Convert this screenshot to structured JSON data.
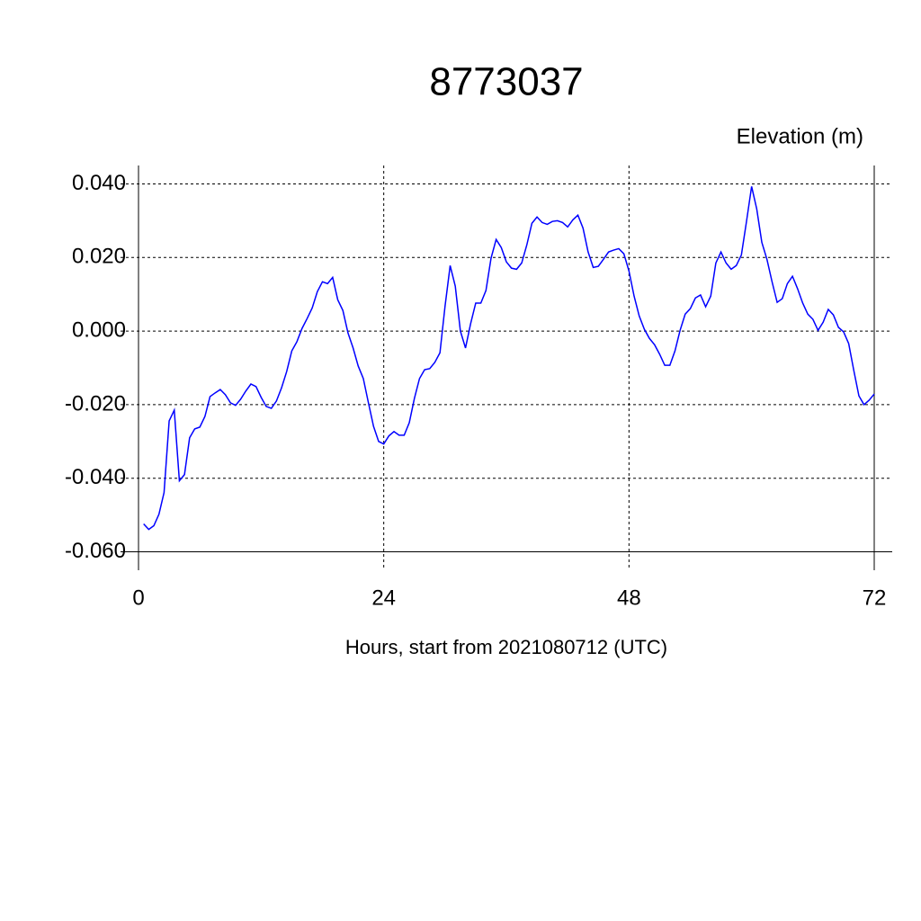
{
  "chart_data": {
    "type": "line",
    "title": "8773037",
    "y_label": "Elevation (m)",
    "x_label": "Hours, start from 2021080712 (UTC)",
    "x": [
      0.5,
      1,
      1.5,
      2,
      2.5,
      3,
      3.5,
      4,
      4.5,
      5,
      5.5,
      6,
      6.5,
      7,
      7.5,
      8,
      8.5,
      9,
      9.5,
      10,
      10.5,
      11,
      11.5,
      12,
      12.5,
      13,
      13.5,
      14,
      14.5,
      15,
      15.5,
      16,
      16.5,
      17,
      17.5,
      18,
      18.5,
      19,
      19.5,
      20,
      20.5,
      21,
      21.5,
      22,
      22.5,
      23,
      23.5,
      24,
      24.5,
      25,
      25.5,
      26,
      26.5,
      27,
      27.5,
      28,
      28.5,
      29,
      29.5,
      30,
      30.5,
      31,
      31.5,
      32,
      32.5,
      33,
      33.5,
      34,
      34.5,
      35,
      35.5,
      36,
      36.5,
      37,
      37.5,
      38,
      38.5,
      39,
      39.5,
      40,
      40.5,
      41,
      41.5,
      42,
      42.5,
      43,
      43.5,
      44,
      44.5,
      45,
      45.5,
      46,
      46.5,
      47,
      47.5,
      48,
      48.5,
      49,
      49.5,
      50,
      50.5,
      51,
      51.5,
      52,
      52.5,
      53,
      53.5,
      54,
      54.5,
      55,
      55.5,
      56,
      56.5,
      57,
      57.5,
      58,
      58.5,
      59,
      59.5,
      60,
      60.5,
      61,
      61.5,
      62,
      62.5,
      63,
      63.5,
      64,
      64.5,
      65,
      65.5,
      66,
      66.5,
      67,
      67.5,
      68,
      68.5,
      69,
      69.5,
      70,
      70.5,
      71,
      71.5,
      72
    ],
    "series": [
      {
        "color": "#0000ff",
        "values": [
          -0.0524,
          -0.0539,
          -0.0529,
          -0.0498,
          -0.0439,
          -0.0244,
          -0.0215,
          -0.0407,
          -0.039,
          -0.029,
          -0.0266,
          -0.0261,
          -0.0232,
          -0.0178,
          -0.0168,
          -0.0159,
          -0.0173,
          -0.0195,
          -0.0202,
          -0.0185,
          -0.0163,
          -0.0144,
          -0.0151,
          -0.018,
          -0.0205,
          -0.021,
          -0.019,
          -0.0154,
          -0.011,
          -0.0054,
          -0.0029,
          0.0007,
          0.0034,
          0.0063,
          0.0107,
          0.0134,
          0.0129,
          0.0146,
          0.0085,
          0.0056,
          -0.0005,
          -0.0046,
          -0.0095,
          -0.0129,
          -0.0195,
          -0.0259,
          -0.03,
          -0.0307,
          -0.0285,
          -0.0273,
          -0.0283,
          -0.0283,
          -0.0249,
          -0.0183,
          -0.0129,
          -0.0105,
          -0.0102,
          -0.0085,
          -0.0059,
          0.0068,
          0.0178,
          0.0122,
          0.0,
          -0.0046,
          0.002,
          0.0076,
          0.0076,
          0.011,
          0.0198,
          0.0249,
          0.0227,
          0.0188,
          0.0171,
          0.0168,
          0.0185,
          0.0234,
          0.0293,
          0.031,
          0.0295,
          0.029,
          0.0298,
          0.03,
          0.0295,
          0.0283,
          0.0302,
          0.0315,
          0.028,
          0.0215,
          0.0173,
          0.0176,
          0.0195,
          0.0215,
          0.022,
          0.0224,
          0.021,
          0.0163,
          0.0095,
          0.0041,
          0.0005,
          -0.002,
          -0.0037,
          -0.0063,
          -0.0093,
          -0.0093,
          -0.0054,
          0.0002,
          0.0046,
          0.0061,
          0.009,
          0.0098,
          0.0066,
          0.0095,
          0.0185,
          0.0215,
          0.0185,
          0.0168,
          0.0178,
          0.0207,
          0.0298,
          0.0393,
          0.0332,
          0.0241,
          0.0195,
          0.0134,
          0.0078,
          0.0088,
          0.0129,
          0.0149,
          0.0115,
          0.0076,
          0.0046,
          0.0032,
          0.0002,
          0.0024,
          0.0059,
          0.0044,
          0.001,
          -0.0002,
          -0.0034,
          -0.0107,
          -0.0176,
          -0.02,
          -0.0188,
          -0.0171
        ]
      }
    ],
    "xlim": [
      0,
      72
    ],
    "xticks": [
      0,
      24,
      48,
      72
    ],
    "ylim": [
      -0.065,
      0.045
    ],
    "yticks": [
      {
        "value": 0.04,
        "label": "0.040"
      },
      {
        "value": 0.02,
        "label": "0.020"
      },
      {
        "value": 0,
        "label": "0.000"
      },
      {
        "value": -0.02,
        "label": "-0.020"
      },
      {
        "value": -0.04,
        "label": "-0.040"
      },
      {
        "value": -0.06,
        "label": "-0.060"
      }
    ],
    "grid": true
  }
}
